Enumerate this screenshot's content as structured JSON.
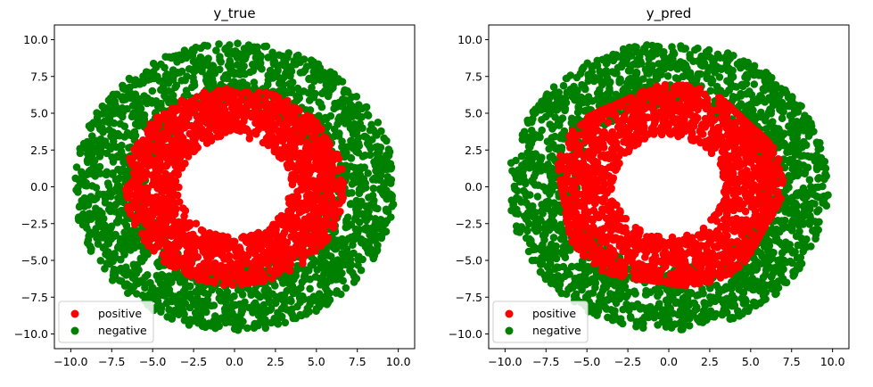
{
  "chart_data": [
    {
      "type": "scatter",
      "title": "y_true",
      "xlabel": "",
      "ylabel": "",
      "xlim": [
        -11,
        11
      ],
      "ylim": [
        -11,
        11
      ],
      "xticks": [
        -10.0,
        -7.5,
        -5.0,
        -2.5,
        0.0,
        2.5,
        5.0,
        7.5,
        10.0
      ],
      "xtick_labels": [
        "−10.0",
        "−7.5",
        "−5.0",
        "−2.5",
        "0.0",
        "2.5",
        "5.0",
        "7.5",
        "10.0"
      ],
      "yticks": [
        10.0,
        7.5,
        5.0,
        2.5,
        0.0,
        -2.5,
        -5.0,
        -7.5,
        -10.0
      ],
      "ytick_labels": [
        "10.0",
        "7.5",
        "5.0",
        "2.5",
        "0.0",
        "−2.5",
        "−5.0",
        "−7.5",
        "−10.0"
      ],
      "grid": false,
      "legend_position": "lower-left",
      "series": [
        {
          "name": "positive",
          "color": "#ff0000",
          "region": {
            "inner_radius": 3.4,
            "outer_radius": 6.7
          },
          "point_count": 1700
        },
        {
          "name": "negative",
          "color": "#008000",
          "region": {
            "inner_radius": 5.3,
            "outer_radius": 9.8
          },
          "point_count": 2000
        }
      ]
    },
    {
      "type": "scatter",
      "title": "y_pred",
      "xlabel": "",
      "ylabel": "",
      "xlim": [
        -11,
        11
      ],
      "ylim": [
        -11,
        11
      ],
      "xticks": [
        -10.0,
        -7.5,
        -5.0,
        -2.5,
        0.0,
        2.5,
        5.0,
        7.5,
        10.0
      ],
      "xtick_labels": [
        "−10.0",
        "−7.5",
        "−5.0",
        "−2.5",
        "0.0",
        "2.5",
        "5.0",
        "7.5",
        "10.0"
      ],
      "yticks": [
        10.0,
        7.5,
        5.0,
        2.5,
        0.0,
        -2.5,
        -5.0,
        -7.5,
        -10.0
      ],
      "ytick_labels": [
        "10.0",
        "7.5",
        "5.0",
        "2.5",
        "0.0",
        "−2.5",
        "−5.0",
        "−7.5",
        "−10.0"
      ],
      "grid": false,
      "legend_position": "lower-left",
      "series": [
        {
          "name": "positive",
          "color": "#ff0000",
          "region": {
            "inner_radius": 3.4,
            "outer_radius": 7.0,
            "shape": "irregular-pentagon"
          },
          "point_count": 1700
        },
        {
          "name": "negative",
          "color": "#008000",
          "region": {
            "inner_radius": 5.6,
            "outer_radius": 9.8
          },
          "point_count": 2000
        }
      ]
    }
  ]
}
